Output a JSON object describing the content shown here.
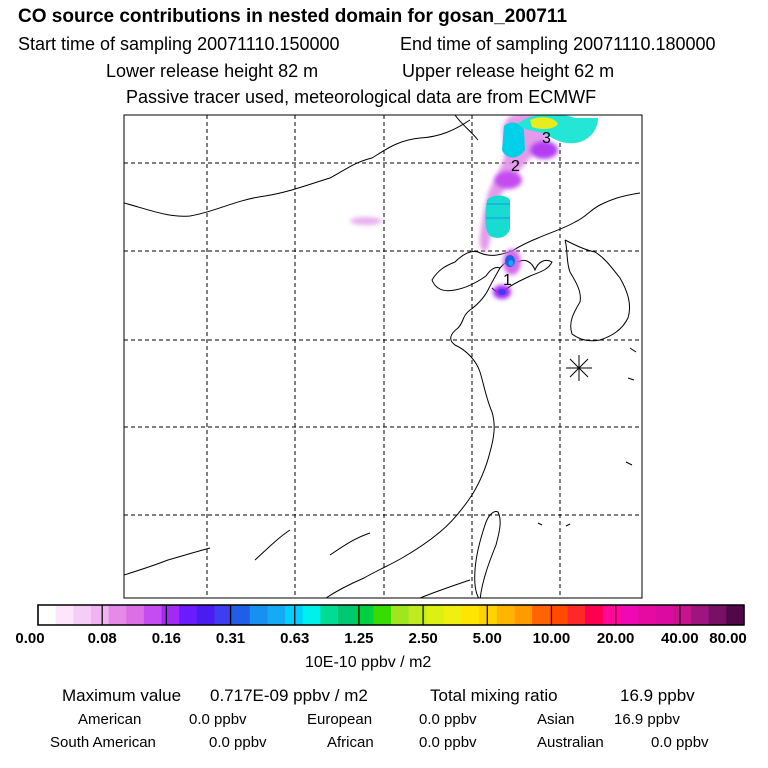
{
  "header": {
    "title": "CO  source contributions in nested domain for gosan_200711",
    "start_time": "Start time of sampling 20071110.150000",
    "end_time": "End time of sampling 20071110.180000",
    "lower_release": "Lower release height   82 m",
    "upper_release": "Upper release height   62 m",
    "tracer_note": "Passive tracer used, meteorological data are from ECMWF"
  },
  "map": {
    "source_labels": [
      "1",
      "2",
      "3"
    ],
    "receptor_marker": "asterisk-icon"
  },
  "colorbar": {
    "labels": [
      "0.00",
      "0.08",
      "0.16",
      "0.31",
      "0.63",
      "1.25",
      "2.50",
      "5.00",
      "10.00",
      "20.00",
      "40.00",
      "80.00"
    ],
    "colors": [
      "#ffffff",
      "#fbe6fb",
      "#f6cdf6",
      "#f0b4f0",
      "#e58ae8",
      "#dc6fe5",
      "#c44cf0",
      "#a329f5",
      "#6a1cff",
      "#4a1cf0",
      "#3e3df2",
      "#1f5fe8",
      "#1691ef",
      "#14aaf5",
      "#00d0ff",
      "#00f0ec",
      "#00dc96",
      "#00c870",
      "#00d040",
      "#37dc00",
      "#a0e61e",
      "#c0ec1e",
      "#dcf014",
      "#f0f010",
      "#ffe600",
      "#ffd200",
      "#ffb400",
      "#ff9b00",
      "#ff6400",
      "#ff4b00",
      "#ff2828",
      "#ff0050",
      "#ff0a96",
      "#f008b4",
      "#e60aa0",
      "#dc0aa0",
      "#c8148c",
      "#a01480",
      "#781068",
      "#50084b"
    ],
    "unit": "10E-10 ppbv / m2"
  },
  "stats": {
    "max_label": "Maximum value",
    "max_value": "0.717E-09 ppbv / m2",
    "total_label": "Total mixing ratio",
    "total_value": "16.9 ppbv",
    "regions": [
      {
        "name": "American",
        "value": "0.0 ppbv"
      },
      {
        "name": "European",
        "value": "0.0 ppbv"
      },
      {
        "name": "Asian",
        "value": "16.9 ppbv"
      },
      {
        "name": "South American",
        "value": "0.0 ppbv"
      },
      {
        "name": "African",
        "value": "0.0 ppbv"
      },
      {
        "name": "Australian",
        "value": "0.0 ppbv"
      }
    ]
  }
}
